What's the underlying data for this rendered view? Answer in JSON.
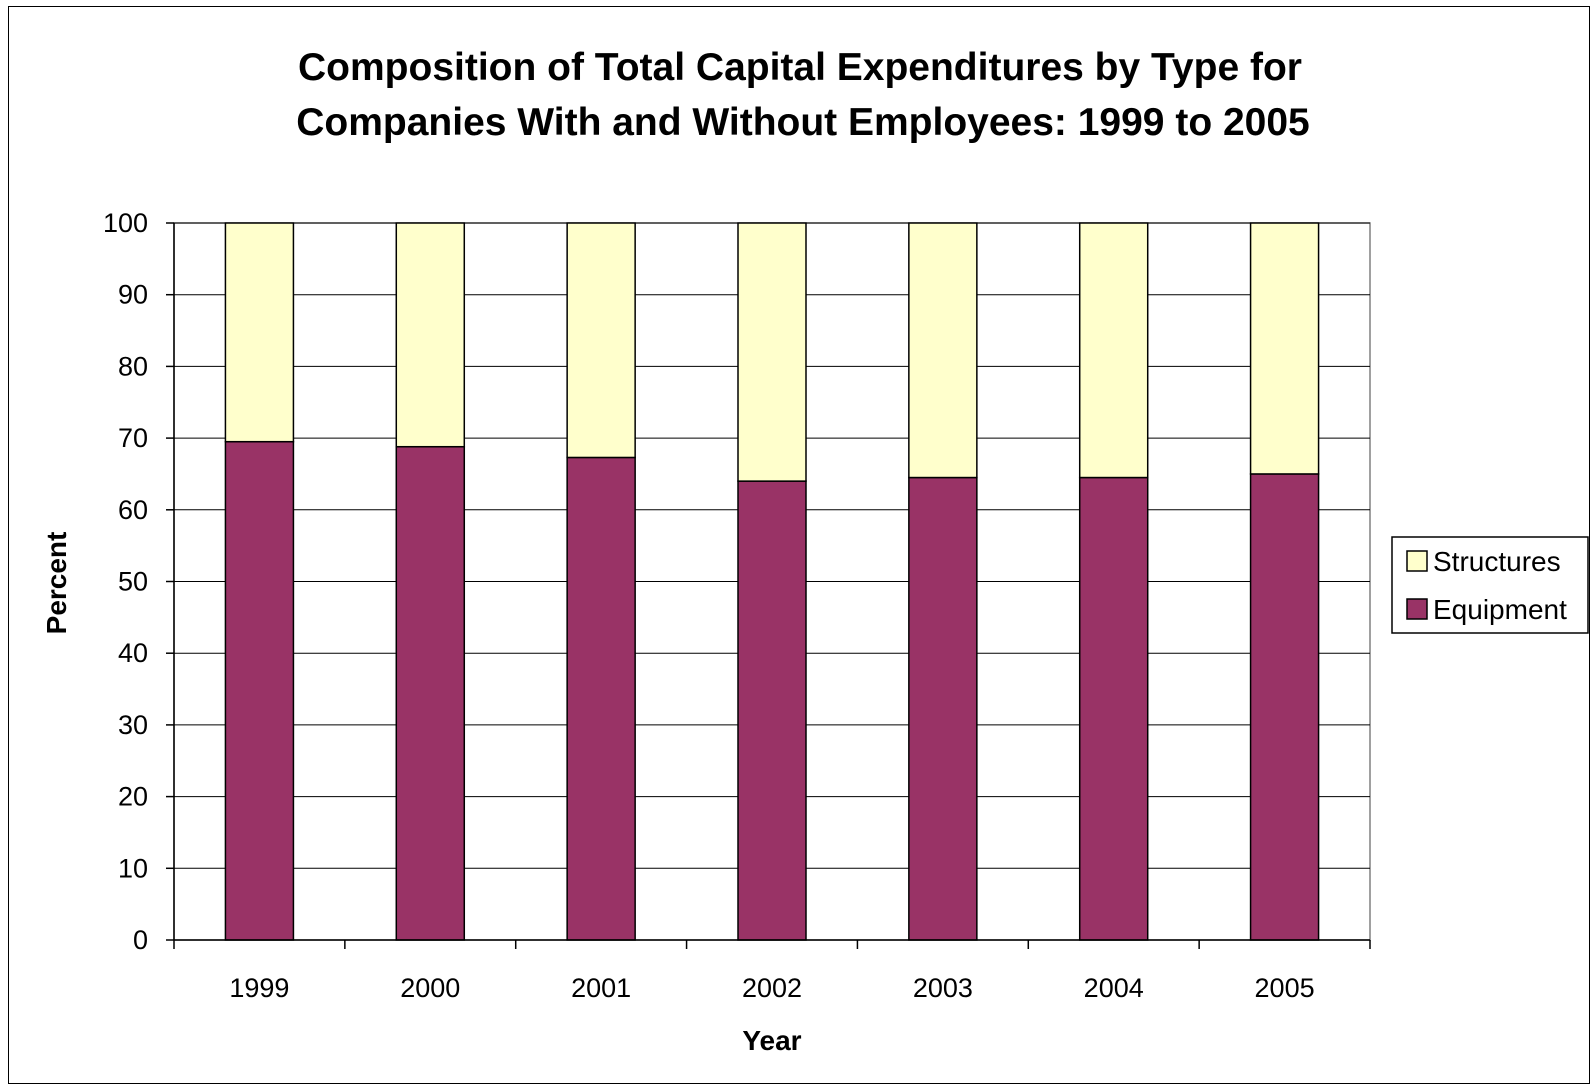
{
  "chart_data": {
    "type": "bar",
    "stacked": true,
    "title": "Composition of Total Capital Expenditures by Type for Companies With and Without Employees: 1999 to 2005",
    "title_lines": [
      "Composition of Total Capital Expenditures by Type for",
      "Companies With and Without Employees: 1999 to 2005"
    ],
    "xlabel": "Year",
    "ylabel": "Percent",
    "categories": [
      "1999",
      "2000",
      "2001",
      "2002",
      "2003",
      "2004",
      "2005"
    ],
    "ylim": [
      0,
      100
    ],
    "yticks": [
      0,
      10,
      20,
      30,
      40,
      50,
      60,
      70,
      80,
      90,
      100
    ],
    "grid": true,
    "legend_position": "right",
    "series": [
      {
        "name": "Equipment",
        "color": "#993366",
        "values": [
          69.5,
          68.8,
          67.3,
          64.0,
          64.5,
          64.5,
          65.0
        ]
      },
      {
        "name": "Structures",
        "color": "#FFFFCC",
        "values": [
          30.5,
          31.2,
          32.7,
          36.0,
          35.5,
          35.5,
          35.0
        ]
      }
    ],
    "legend_order": [
      "Structures",
      "Equipment"
    ]
  }
}
